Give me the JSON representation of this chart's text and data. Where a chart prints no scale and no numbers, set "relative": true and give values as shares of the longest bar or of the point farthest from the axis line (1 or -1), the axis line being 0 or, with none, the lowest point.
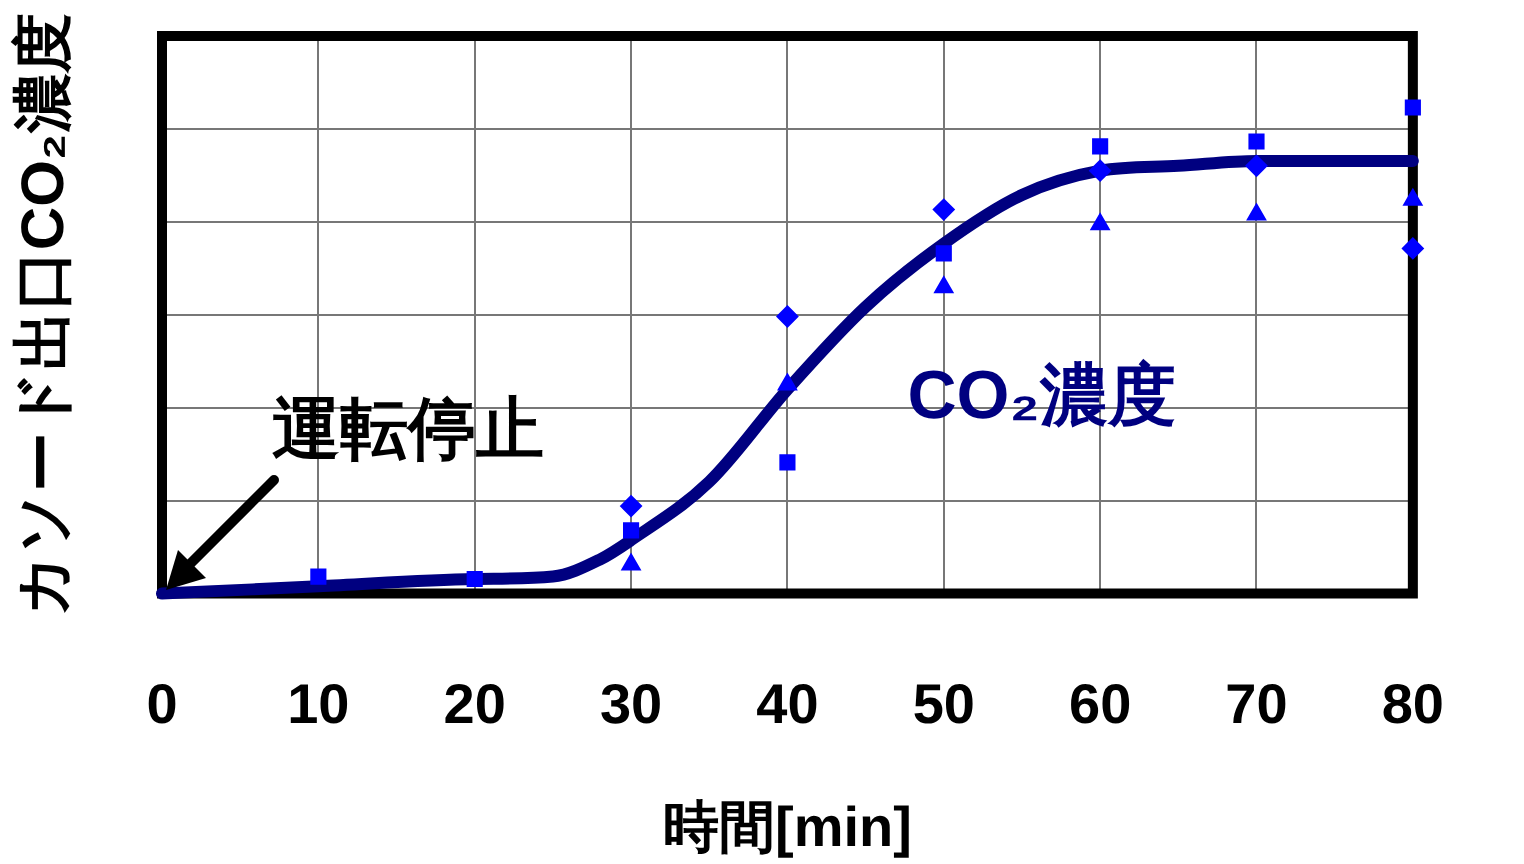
{
  "chart_data": {
    "type": "scatter",
    "xlabel": "時間[min]",
    "ylabel": "カソード出口CO₂濃度",
    "relative": true,
    "xlim": [
      0,
      80
    ],
    "xticks": [
      0,
      10,
      20,
      30,
      40,
      50,
      60,
      70,
      80
    ],
    "grid": true,
    "legend": false,
    "annotations": [
      {
        "text": "運転停止",
        "x": 0,
        "y": 0
      }
    ],
    "series": [
      {
        "type": "line",
        "name": "CO₂濃度",
        "color": "#000080",
        "marker": "none",
        "x": [
          0,
          10,
          20,
          25,
          28,
          30,
          35,
          40,
          45,
          50,
          55,
          60,
          65,
          70,
          80
        ],
        "values": [
          0,
          0.015,
          0.03,
          0.035,
          0.07,
          0.11,
          0.23,
          0.42,
          0.59,
          0.72,
          0.82,
          0.87,
          0.88,
          0.89,
          0.89
        ]
      },
      {
        "color": "#0000ff",
        "marker": "square",
        "x": [
          10,
          20,
          30,
          40,
          50,
          60,
          70,
          80
        ],
        "values": [
          0.035,
          0.03,
          0.13,
          0.27,
          0.7,
          0.92,
          0.93,
          1
        ]
      },
      {
        "color": "#0000ff",
        "marker": "diamond",
        "x": [
          30,
          40,
          50,
          60,
          70,
          80
        ],
        "values": [
          0.18,
          0.57,
          0.79,
          0.87,
          0.88,
          0.71
        ]
      },
      {
        "color": "#0000ff",
        "marker": "triangle",
        "x": [
          30,
          40,
          50,
          60,
          70,
          80
        ],
        "values": [
          0.06,
          0.43,
          0.63,
          0.76,
          0.78,
          0.81
        ]
      }
    ]
  }
}
